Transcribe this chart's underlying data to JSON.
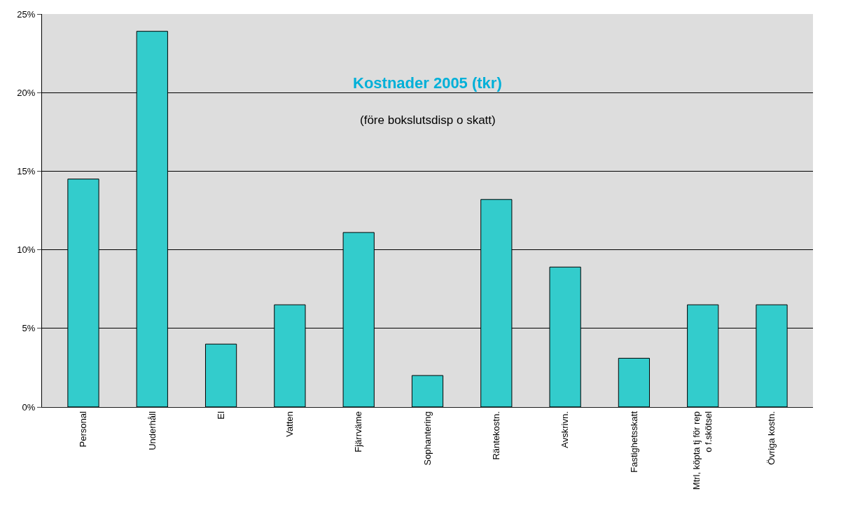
{
  "chart_data": {
    "type": "bar",
    "title": "Kostnader 2005 (tkr)",
    "subtitle": "(före bokslutsdisp o skatt)",
    "categories": [
      "Personal",
      "Underhåll",
      "El",
      "Vatten",
      "Fjärrväme",
      "Sophantering",
      "Räntekostn.",
      "Avskrivn.",
      "Fastighetsskatt",
      "Mtrl, köpta tj för rep\no f.skötsel",
      "Övriga kostn."
    ],
    "values": [
      14.5,
      23.9,
      4.0,
      6.5,
      11.1,
      2.0,
      13.2,
      8.9,
      3.1,
      6.5,
      6.5
    ],
    "color": "#33cccc",
    "ylim": [
      0,
      25
    ],
    "yticks": [
      {
        "value": 0,
        "label": "0%"
      },
      {
        "value": 5,
        "label": "5%"
      },
      {
        "value": 10,
        "label": "10%"
      },
      {
        "value": 15,
        "label": "15%"
      },
      {
        "value": 20,
        "label": "20%"
      },
      {
        "value": 25,
        "label": "25%"
      }
    ],
    "grid": "y"
  }
}
